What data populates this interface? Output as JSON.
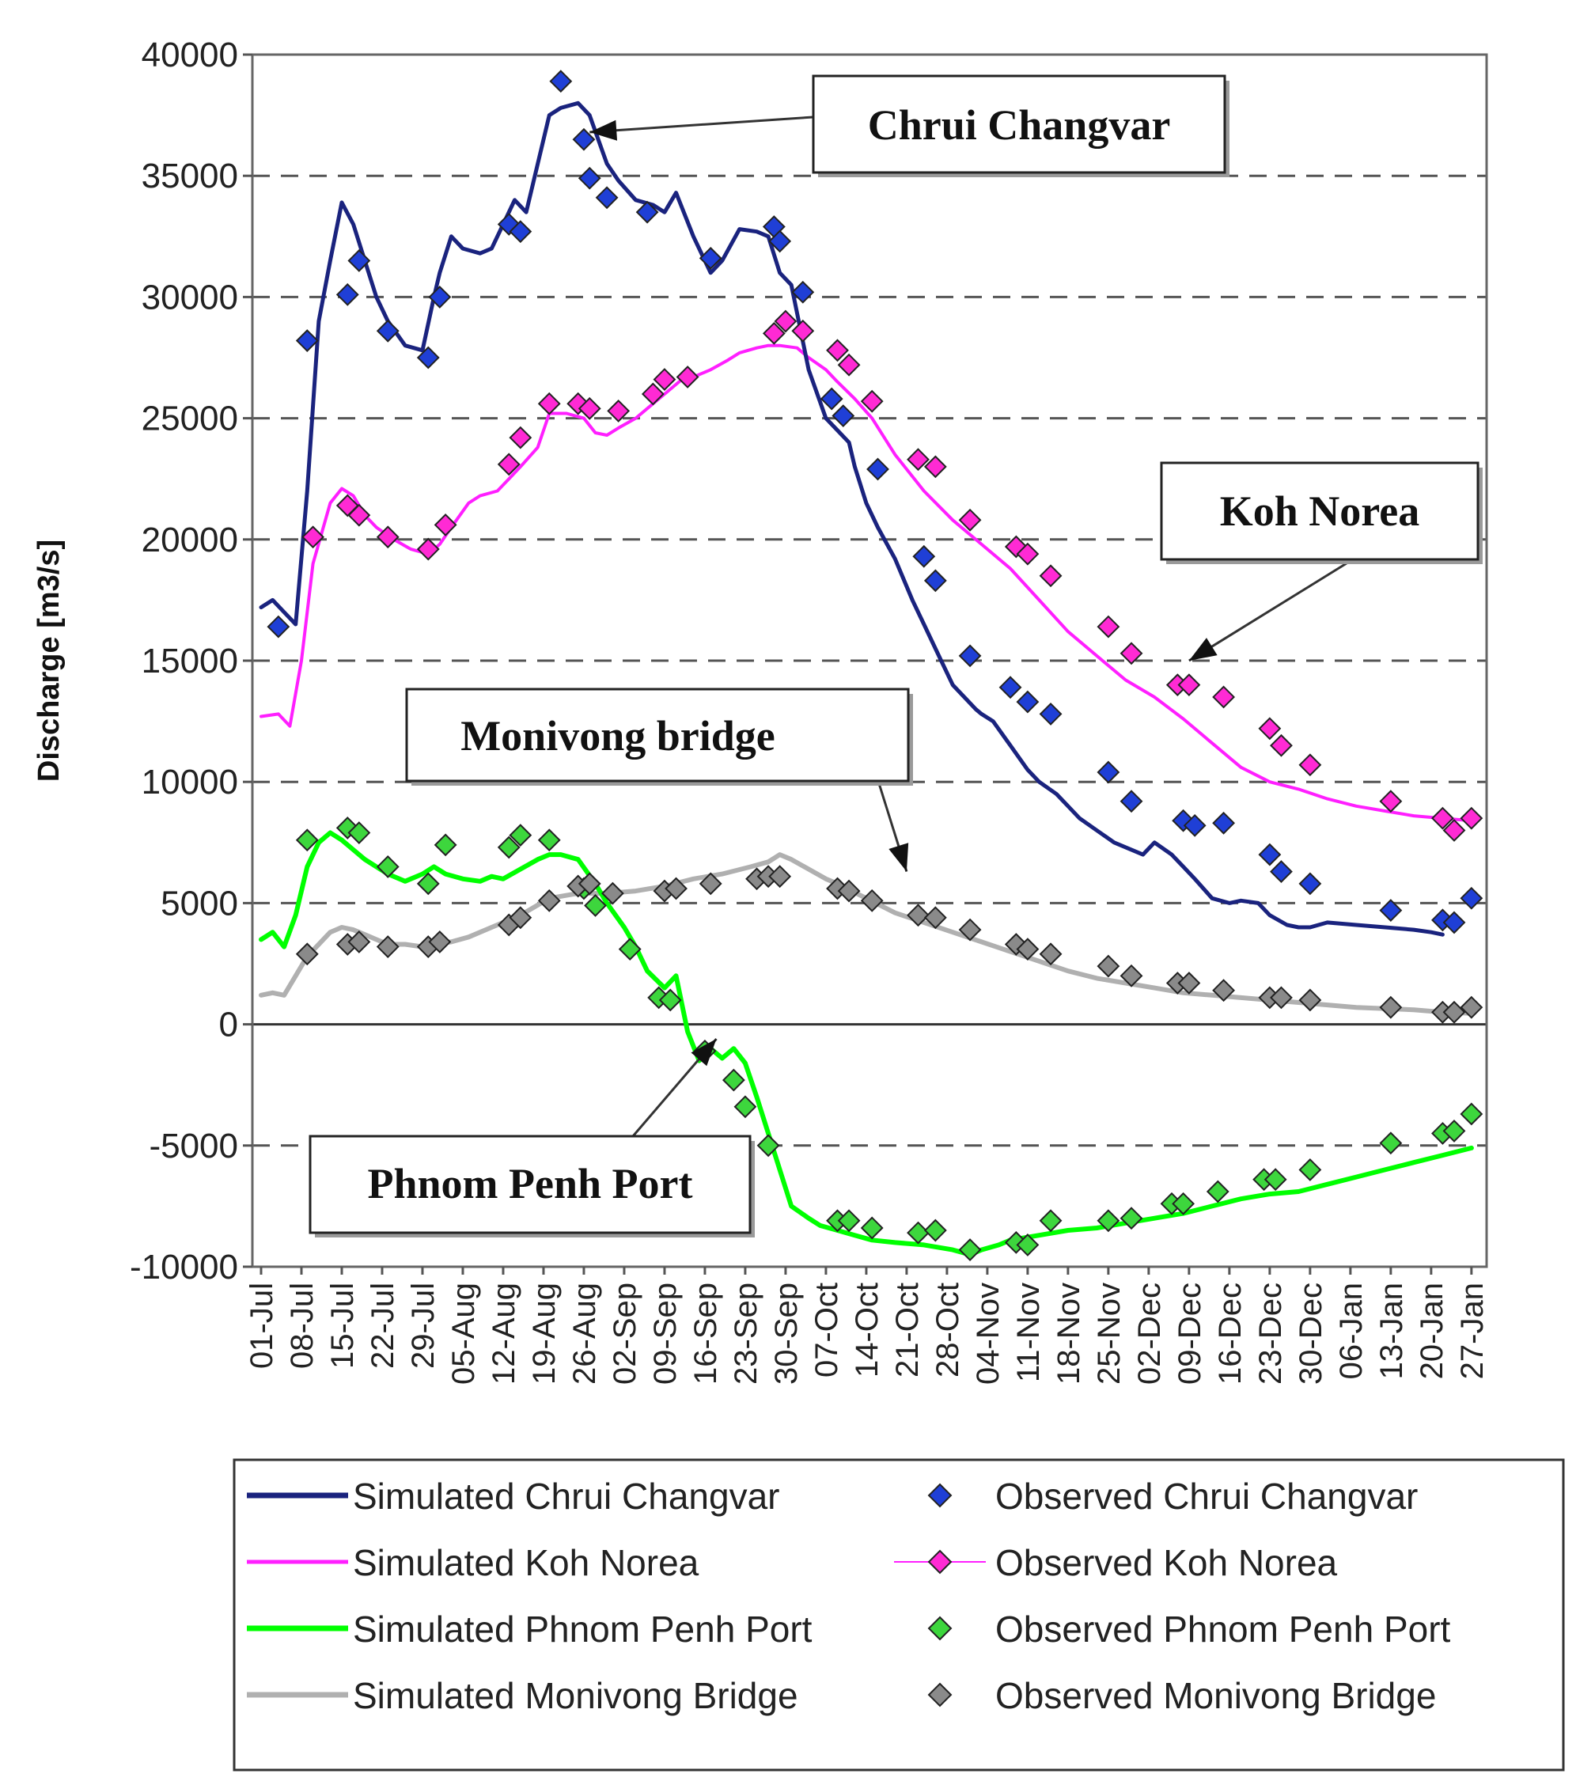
{
  "chart_data": {
    "type": "line",
    "title": "",
    "ylabel": "Discharge [m3/s]",
    "xlabel": "",
    "ylim": [
      -10000,
      40000
    ],
    "yticks": [
      -10000,
      -5000,
      0,
      5000,
      10000,
      15000,
      20000,
      25000,
      30000,
      35000,
      40000
    ],
    "ytick_labels": [
      "-10000",
      "-5000",
      "0",
      "5000",
      "10000",
      "15000",
      "20000",
      "25000",
      "30000",
      "35000",
      "40000"
    ],
    "xlim_days": [
      0,
      210
    ],
    "xtick_labels": [
      "01-Jul",
      "08-Jul",
      "15-Jul",
      "22-Jul",
      "29-Jul",
      "05-Aug",
      "12-Aug",
      "19-Aug",
      "26-Aug",
      "02-Sep",
      "09-Sep",
      "16-Sep",
      "23-Sep",
      "30-Sep",
      "07-Oct",
      "14-Oct",
      "21-Oct",
      "28-Oct",
      "04-Nov",
      "11-Nov",
      "18-Nov",
      "25-Nov",
      "02-Dec",
      "09-Dec",
      "16-Dec",
      "23-Dec",
      "30-Dec",
      "06-Jan",
      "13-Jan",
      "20-Jan",
      "27-Jan"
    ],
    "x_unit_note": "days after 01-Jul",
    "grid": "horizontal dashed",
    "series": [
      {
        "name": "Simulated Chrui Changvar",
        "kind": "line",
        "color": "#1a237e",
        "x": [
          0,
          2,
          4,
          6,
          8,
          10,
          12,
          14,
          16,
          18,
          20,
          22,
          25,
          28,
          30,
          31,
          33,
          35,
          38,
          40,
          42,
          44,
          46,
          48,
          50,
          52,
          55,
          57,
          60,
          62,
          65,
          68,
          70,
          72,
          75,
          78,
          80,
          83,
          86,
          88,
          90,
          92,
          95,
          98,
          100,
          102,
          103,
          105,
          107,
          110,
          113,
          115,
          118,
          120,
          122,
          124,
          125,
          127,
          130,
          133,
          135,
          138,
          140,
          142,
          145,
          148,
          150,
          153,
          155,
          158,
          160,
          162,
          165,
          168,
          170,
          173,
          175,
          178,
          180,
          182,
          185,
          190,
          195,
          200,
          203,
          205
        ],
        "values": [
          17200,
          17500,
          17000,
          16500,
          22000,
          29000,
          31500,
          33900,
          33000,
          31500,
          30000,
          29000,
          28000,
          27800,
          30000,
          31000,
          32500,
          32000,
          31800,
          32000,
          33000,
          34000,
          33500,
          35500,
          37500,
          37800,
          38000,
          37500,
          35500,
          34800,
          34000,
          33800,
          33500,
          34300,
          32500,
          31000,
          31500,
          32800,
          32700,
          32500,
          31000,
          30500,
          27000,
          25000,
          24500,
          24000,
          23000,
          21500,
          20500,
          19200,
          17500,
          16500,
          15000,
          14000,
          13500,
          13000,
          12800,
          12500,
          11500,
          10500,
          10000,
          9500,
          9000,
          8500,
          8000,
          7500,
          7300,
          7000,
          7500,
          7000,
          6500,
          6000,
          5200,
          5000,
          5100,
          5000,
          4500,
          4100,
          4000,
          4000,
          4200,
          4100,
          4000,
          3900,
          3800,
          3700
        ]
      },
      {
        "name": "Observed Chrui Changvar",
        "kind": "markers",
        "color": "#1f3fd6",
        "x": [
          3,
          8,
          15,
          17,
          22,
          29,
          31,
          43,
          45,
          52,
          56,
          57,
          60,
          67,
          78,
          89,
          90,
          94,
          99,
          101,
          107,
          115,
          117,
          123,
          130,
          133,
          137,
          147,
          151,
          160,
          162,
          167,
          175,
          177,
          182,
          196,
          205,
          207,
          210
        ],
        "values": [
          16400,
          28200,
          30100,
          31500,
          28600,
          27500,
          30000,
          33000,
          32700,
          38900,
          36500,
          34900,
          34100,
          33500,
          31600,
          32900,
          32300,
          30200,
          25800,
          25100,
          22900,
          19300,
          18300,
          15200,
          13900,
          13300,
          12800,
          10400,
          9200,
          8400,
          8200,
          8300,
          7000,
          6300,
          5800,
          4700,
          4300,
          4200,
          5200
        ]
      },
      {
        "name": "Simulated Koh Norea",
        "kind": "line",
        "color": "#ff1fff",
        "x": [
          0,
          3,
          5,
          7,
          9,
          12,
          14,
          16,
          18,
          20,
          23,
          26,
          29,
          31,
          33,
          36,
          38,
          41,
          43,
          45,
          48,
          50,
          53,
          56,
          58,
          60,
          62,
          65,
          68,
          70,
          73,
          75,
          78,
          81,
          83,
          86,
          88,
          90,
          93,
          95,
          98,
          100,
          103,
          106,
          110,
          115,
          120,
          125,
          130,
          135,
          140,
          145,
          150,
          155,
          160,
          165,
          170,
          175,
          180,
          185,
          190,
          195,
          200,
          205,
          210
        ],
        "values": [
          12700,
          12800,
          12300,
          15000,
          19000,
          21500,
          22100,
          21800,
          21000,
          20500,
          20000,
          19600,
          19400,
          19800,
          20500,
          21500,
          21800,
          22000,
          22500,
          23000,
          23800,
          25200,
          25200,
          25000,
          24400,
          24300,
          24600,
          25000,
          25600,
          26000,
          26600,
          26700,
          27000,
          27400,
          27700,
          27900,
          28000,
          28000,
          27900,
          27500,
          27000,
          26500,
          25800,
          25000,
          23500,
          22000,
          20800,
          19800,
          18800,
          17500,
          16200,
          15200,
          14200,
          13500,
          12600,
          11600,
          10600,
          10000,
          9700,
          9300,
          9000,
          8800,
          8600,
          8500,
          8400
        ]
      },
      {
        "name": "Observed Koh Norea",
        "kind": "markers",
        "color": "#ff2ad4",
        "x": [
          9,
          15,
          17,
          22,
          29,
          32,
          43,
          45,
          50,
          55,
          57,
          62,
          68,
          70,
          74,
          89,
          91,
          94,
          100,
          102,
          106,
          114,
          117,
          123,
          131,
          133,
          137,
          147,
          151,
          159,
          161,
          167,
          175,
          177,
          182,
          196,
          205,
          207,
          210
        ],
        "values": [
          20100,
          21400,
          21000,
          20100,
          19600,
          20600,
          23100,
          24200,
          25600,
          25600,
          25400,
          25300,
          26000,
          26600,
          26700,
          28500,
          29000,
          28600,
          27800,
          27200,
          25700,
          23300,
          23000,
          20800,
          19700,
          19400,
          18500,
          16400,
          15300,
          14000,
          14000,
          13500,
          12200,
          11500,
          10700,
          9200,
          8500,
          8000,
          8500
        ]
      },
      {
        "name": "Simulated Phnom Penh Port",
        "kind": "line",
        "color": "#00ff00",
        "x": [
          0,
          2,
          4,
          6,
          8,
          10,
          12,
          14,
          16,
          18,
          20,
          22,
          25,
          28,
          30,
          32,
          35,
          38,
          40,
          42,
          45,
          48,
          50,
          52,
          55,
          58,
          60,
          63,
          65,
          67,
          70,
          72,
          74,
          76,
          78,
          80,
          82,
          84,
          86,
          88,
          90,
          92,
          95,
          97,
          100,
          103,
          106,
          110,
          115,
          120,
          123,
          125,
          128,
          130,
          135,
          140,
          145,
          150,
          155,
          160,
          165,
          170,
          175,
          180,
          185,
          190,
          195,
          200,
          205,
          210
        ],
        "values": [
          3500,
          3800,
          3200,
          4500,
          6500,
          7500,
          7900,
          7600,
          7200,
          6800,
          6500,
          6200,
          5900,
          6200,
          6500,
          6200,
          6000,
          5900,
          6100,
          6000,
          6400,
          6800,
          7000,
          7000,
          6800,
          5800,
          5000,
          4000,
          3200,
          2200,
          1500,
          2000,
          -300,
          -1500,
          -1000,
          -1400,
          -1000,
          -1600,
          -3000,
          -4500,
          -6000,
          -7500,
          -8000,
          -8300,
          -8500,
          -8700,
          -8900,
          -9000,
          -9100,
          -9300,
          -9500,
          -9300,
          -9100,
          -8900,
          -8700,
          -8500,
          -8400,
          -8200,
          -8000,
          -7800,
          -7500,
          -7200,
          -7000,
          -6900,
          -6600,
          -6300,
          -6000,
          -5700,
          -5400,
          -5100
        ]
      },
      {
        "name": "Observed Phnom Penh Port",
        "kind": "markers",
        "color": "#3dd63d",
        "x": [
          8,
          15,
          17,
          22,
          29,
          32,
          43,
          45,
          50,
          56,
          58,
          64,
          69,
          71,
          77,
          82,
          84,
          88,
          100,
          102,
          106,
          114,
          117,
          123,
          131,
          133,
          137,
          147,
          151,
          158,
          160,
          166,
          174,
          176,
          182,
          196,
          205,
          207,
          210
        ],
        "values": [
          7600,
          8100,
          7900,
          6500,
          5800,
          7400,
          7300,
          7800,
          7600,
          5600,
          4900,
          3100,
          1100,
          1000,
          -1100,
          -2300,
          -3400,
          -5000,
          -8100,
          -8100,
          -8400,
          -8600,
          -8500,
          -9300,
          -9000,
          -9100,
          -8100,
          -8100,
          -8000,
          -7400,
          -7400,
          -6900,
          -6400,
          -6400,
          -6000,
          -4900,
          -4500,
          -4400,
          -3700
        ]
      },
      {
        "name": "Simulated Monivong Bridge",
        "kind": "line",
        "color": "#b0b0b0",
        "x": [
          0,
          2,
          4,
          6,
          8,
          10,
          12,
          14,
          16,
          18,
          20,
          22,
          25,
          28,
          30,
          33,
          36,
          40,
          45,
          50,
          55,
          60,
          65,
          70,
          75,
          80,
          85,
          88,
          90,
          92,
          95,
          98,
          100,
          105,
          110,
          115,
          120,
          125,
          130,
          135,
          140,
          145,
          150,
          155,
          160,
          165,
          170,
          175,
          180,
          185,
          190,
          195,
          200,
          205,
          210
        ],
        "values": [
          1200,
          1300,
          1200,
          2000,
          2800,
          3300,
          3800,
          4000,
          3900,
          3700,
          3500,
          3300,
          3300,
          3200,
          3300,
          3400,
          3600,
          4000,
          4500,
          5200,
          5400,
          5400,
          5500,
          5700,
          6000,
          6200,
          6500,
          6700,
          7000,
          6800,
          6400,
          6000,
          5800,
          5200,
          4600,
          4200,
          3800,
          3400,
          3000,
          2600,
          2200,
          1900,
          1700,
          1500,
          1300,
          1200,
          1100,
          1000,
          900,
          800,
          700,
          650,
          600,
          500,
          450
        ]
      },
      {
        "name": "Observed Monivong Bridge",
        "kind": "markers",
        "color": "#8a8a8a",
        "x": [
          8,
          15,
          17,
          22,
          29,
          31,
          43,
          45,
          50,
          55,
          57,
          61,
          70,
          72,
          78,
          86,
          88,
          90,
          100,
          102,
          106,
          114,
          117,
          123,
          131,
          133,
          137,
          147,
          151,
          159,
          161,
          167,
          175,
          177,
          182,
          196,
          205,
          207,
          210
        ],
        "values": [
          2900,
          3300,
          3400,
          3200,
          3200,
          3400,
          4100,
          4400,
          5100,
          5700,
          5800,
          5400,
          5500,
          5600,
          5800,
          6000,
          6100,
          6100,
          5600,
          5500,
          5100,
          4500,
          4400,
          3900,
          3300,
          3100,
          2900,
          2400,
          2000,
          1700,
          1700,
          1400,
          1100,
          1100,
          1000,
          700,
          500,
          500,
          700
        ]
      }
    ],
    "annotations": [
      {
        "label": "Chrui Changvar",
        "arrow_to_x": 57,
        "arrow_to_y": 36800
      },
      {
        "label": "Koh Norea",
        "arrow_to_x": 161,
        "arrow_to_y": 15000
      },
      {
        "label": "Monivong bridge",
        "arrow_to_x": 112,
        "arrow_to_y": 6300
      },
      {
        "label": "Phnom Penh Port",
        "arrow_to_x": 79,
        "arrow_to_y": -600
      }
    ],
    "legend": {
      "position": "bottom",
      "entries": [
        {
          "label": "Simulated Chrui Changvar",
          "series": 0
        },
        {
          "label": "Observed Chrui Changvar",
          "series": 1
        },
        {
          "label": "Simulated Koh Norea",
          "series": 2
        },
        {
          "label": "Observed Koh Norea",
          "series": 3
        },
        {
          "label": "Simulated Phnom Penh Port",
          "series": 4
        },
        {
          "label": "Observed Phnom Penh Port",
          "series": 5
        },
        {
          "label": "Simulated Monivong Bridge",
          "series": 6
        },
        {
          "label": "Observed Monivong Bridge",
          "series": 7
        }
      ]
    }
  }
}
